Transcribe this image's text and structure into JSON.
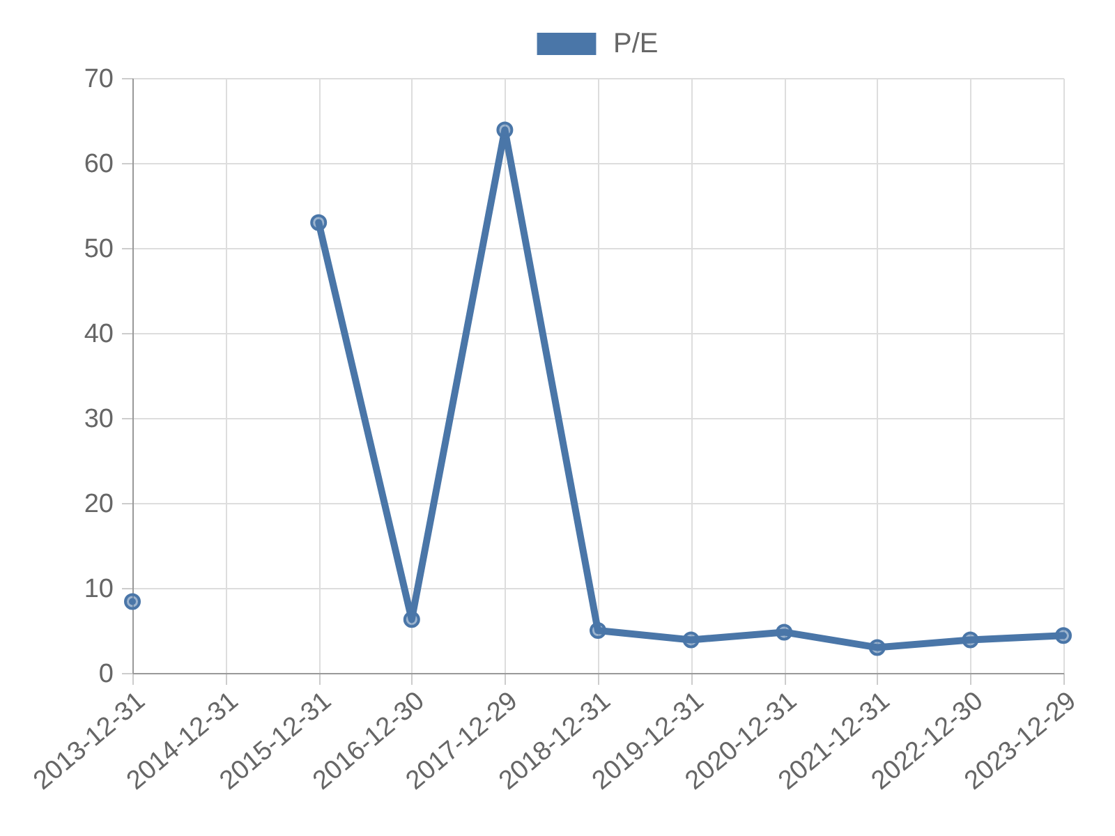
{
  "chart_data": {
    "type": "line",
    "categories": [
      "2013-12-31",
      "2014-12-31",
      "2015-12-31",
      "2016-12-30",
      "2017-12-29",
      "2018-12-31",
      "2019-12-31",
      "2020-12-31",
      "2021-12-31",
      "2022-12-30",
      "2023-12-29"
    ],
    "series": [
      {
        "name": "P/E",
        "color": "#4a76a8",
        "values": [
          8.4,
          null,
          53,
          6.3,
          63.9,
          5,
          3.9,
          4.8,
          3,
          3.9,
          4.4
        ]
      }
    ],
    "ylim": [
      0,
      70
    ],
    "yticks": [
      0,
      10,
      20,
      30,
      40,
      50,
      60,
      70
    ],
    "grid": true,
    "legend": "top",
    "marker": "circle",
    "line_style": "solid"
  }
}
